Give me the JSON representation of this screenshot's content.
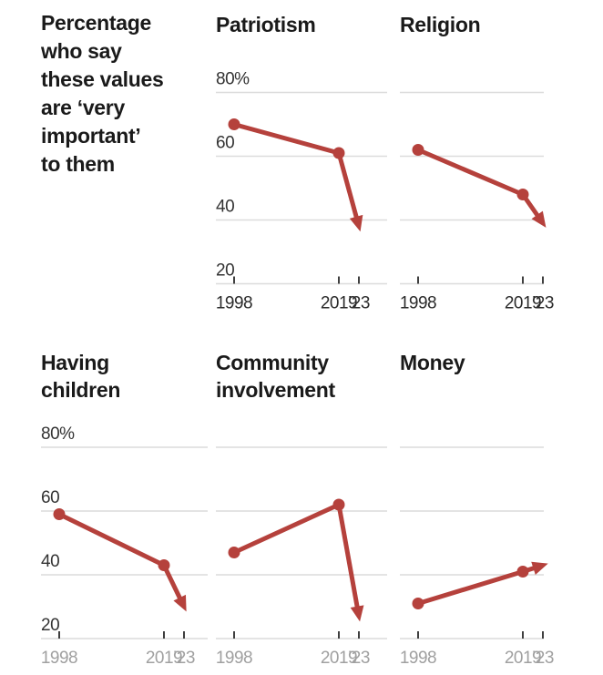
{
  "intro": {
    "lines": [
      "Percentage",
      "who say",
      "these values",
      "are ‘very",
      "important’",
      "to them"
    ]
  },
  "chart_data": {
    "type": "line",
    "title": "Percentage who say these values are ‘very important’ to them",
    "x": [
      1998,
      2019,
      2023
    ],
    "x_tick_labels": [
      "1998",
      "2019",
      "’23"
    ],
    "ylim": [
      20,
      80
    ],
    "y_gridlines": [
      20,
      40,
      60,
      80
    ],
    "y_tick_labels": [
      "20",
      "40",
      "60",
      "80%"
    ],
    "grid": true,
    "legend": "none",
    "series": [
      {
        "name": "Patriotism",
        "values": [
          70,
          61,
          38
        ],
        "end_arrow": "down"
      },
      {
        "name": "Religion",
        "values": [
          62,
          48,
          39
        ],
        "end_arrow": "down"
      },
      {
        "name": "Having children",
        "values": [
          59,
          43,
          30
        ],
        "end_arrow": "down"
      },
      {
        "name": "Community involvement",
        "values": [
          47,
          62,
          27
        ],
        "end_arrow": "down"
      },
      {
        "name": "Money",
        "values": [
          31,
          41,
          43
        ],
        "end_arrow": "up"
      }
    ],
    "panels_with_y_axis_labels": [
      "Patriotism",
      "Having children"
    ],
    "x_label_style_note": "top row dark labels, bottom row gray labels"
  },
  "colors": {
    "series": "#b5413c",
    "grid": "#dcdcdc",
    "tick": "#3f3f3f",
    "y_label": "#333333",
    "x_label_top_row": "#2b2b2b",
    "x_label_bottom_row": "#a0a0a0",
    "title": "#1a1a1a"
  }
}
